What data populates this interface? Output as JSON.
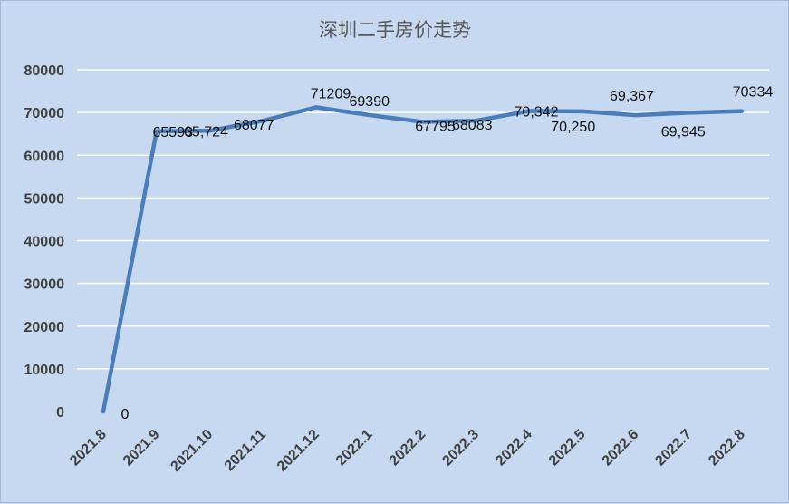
{
  "chart_data": {
    "type": "line",
    "title": "深圳二手房价走势",
    "xlabel": "",
    "ylabel": "",
    "ylim": [
      0,
      80000
    ],
    "yticks": [
      "0",
      "10000",
      "20000",
      "30000",
      "40000",
      "50000",
      "60000",
      "70000",
      "80000"
    ],
    "grid": true,
    "legend": "none",
    "categories": [
      "2021.8",
      "2021.9",
      "2021.10",
      "2021.11",
      "2021.12",
      "2022.1",
      "2022.2",
      "2022.3",
      "2022.4",
      "2022.5",
      "2022.6",
      "2022.7",
      "2022.8"
    ],
    "series": [
      {
        "values": [
          0,
          65593,
          65724,
          68077,
          71209,
          69390,
          67795,
          68083,
          70342,
          70250,
          69367,
          69945,
          70334
        ],
        "labels": [
          "0",
          "65593",
          "65,724",
          "68077",
          "71209",
          "69390",
          "67795",
          "68083",
          "70,342",
          "70,250",
          "69,367",
          "69,945",
          "70334"
        ],
        "color": "#4a7ebb"
      }
    ]
  }
}
